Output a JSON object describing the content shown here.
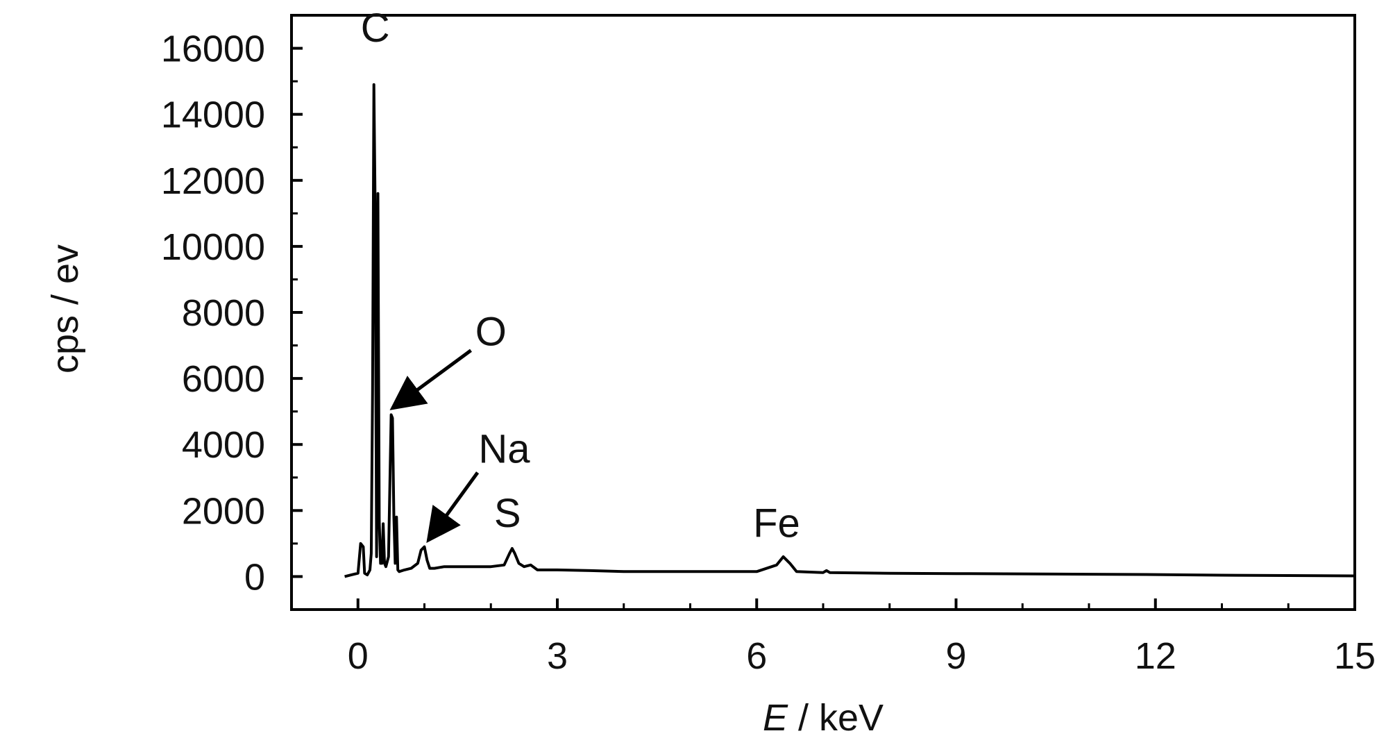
{
  "chart_data": {
    "type": "line",
    "title": "",
    "xlabel_italic": "E",
    "xlabel_rest": " / keV",
    "ylabel": "cps / ev",
    "xlim": [
      -1,
      15
    ],
    "ylim": [
      -1000,
      17000
    ],
    "x_ticks": [
      0,
      3,
      6,
      9,
      12,
      15
    ],
    "y_ticks": [
      0,
      2000,
      4000,
      6000,
      8000,
      10000,
      12000,
      14000,
      16000
    ],
    "grid": false,
    "legend": "none",
    "line_color": "#000000",
    "series": [
      {
        "x": [
          -0.2,
          0.0,
          0.04,
          0.08,
          0.1,
          0.14,
          0.18,
          0.2,
          0.22,
          0.24,
          0.26,
          0.28,
          0.3,
          0.32,
          0.34,
          0.36,
          0.38,
          0.4,
          0.42,
          0.46,
          0.5,
          0.52,
          0.54,
          0.56,
          0.58,
          0.6,
          0.62,
          0.7,
          0.8,
          0.9,
          0.95,
          1.0,
          1.04,
          1.08,
          1.15,
          1.3,
          1.5,
          1.8,
          2.0,
          2.2,
          2.28,
          2.32,
          2.36,
          2.42,
          2.5,
          2.6,
          2.7,
          3.0,
          3.5,
          4.0,
          5.0,
          6.0,
          6.3,
          6.4,
          6.5,
          6.6,
          7.0,
          7.05,
          7.1,
          8.0,
          9.0,
          10.0,
          11.0,
          12.0,
          13.0,
          14.0,
          15.0
        ],
        "y": [
          0,
          100,
          1000,
          900,
          100,
          50,
          200,
          700,
          5600,
          14900,
          11000,
          600,
          11600,
          1700,
          400,
          400,
          1600,
          400,
          300,
          600,
          4900,
          4800,
          1800,
          400,
          1800,
          200,
          150,
          200,
          250,
          400,
          800,
          900,
          500,
          250,
          250,
          300,
          300,
          300,
          300,
          350,
          700,
          850,
          700,
          400,
          300,
          350,
          200,
          200,
          180,
          150,
          150,
          150,
          350,
          600,
          400,
          150,
          120,
          180,
          120,
          100,
          90,
          80,
          70,
          60,
          40,
          30,
          20
        ]
      }
    ],
    "annotations": [
      {
        "text": "C",
        "x": 0.26,
        "y": 16200
      },
      {
        "text": "O",
        "x": 2.0,
        "y": 7000
      },
      {
        "text": "Na",
        "x": 2.2,
        "y": 3450
      },
      {
        "text": "S",
        "x": 2.25,
        "y": 1500
      },
      {
        "text": "Fe",
        "x": 6.3,
        "y": 1200
      }
    ],
    "arrows": [
      {
        "from": [
          1.7,
          6850
        ],
        "to": [
          0.52,
          5100
        ]
      },
      {
        "from": [
          1.8,
          3150
        ],
        "to": [
          1.06,
          1100
        ]
      }
    ]
  }
}
